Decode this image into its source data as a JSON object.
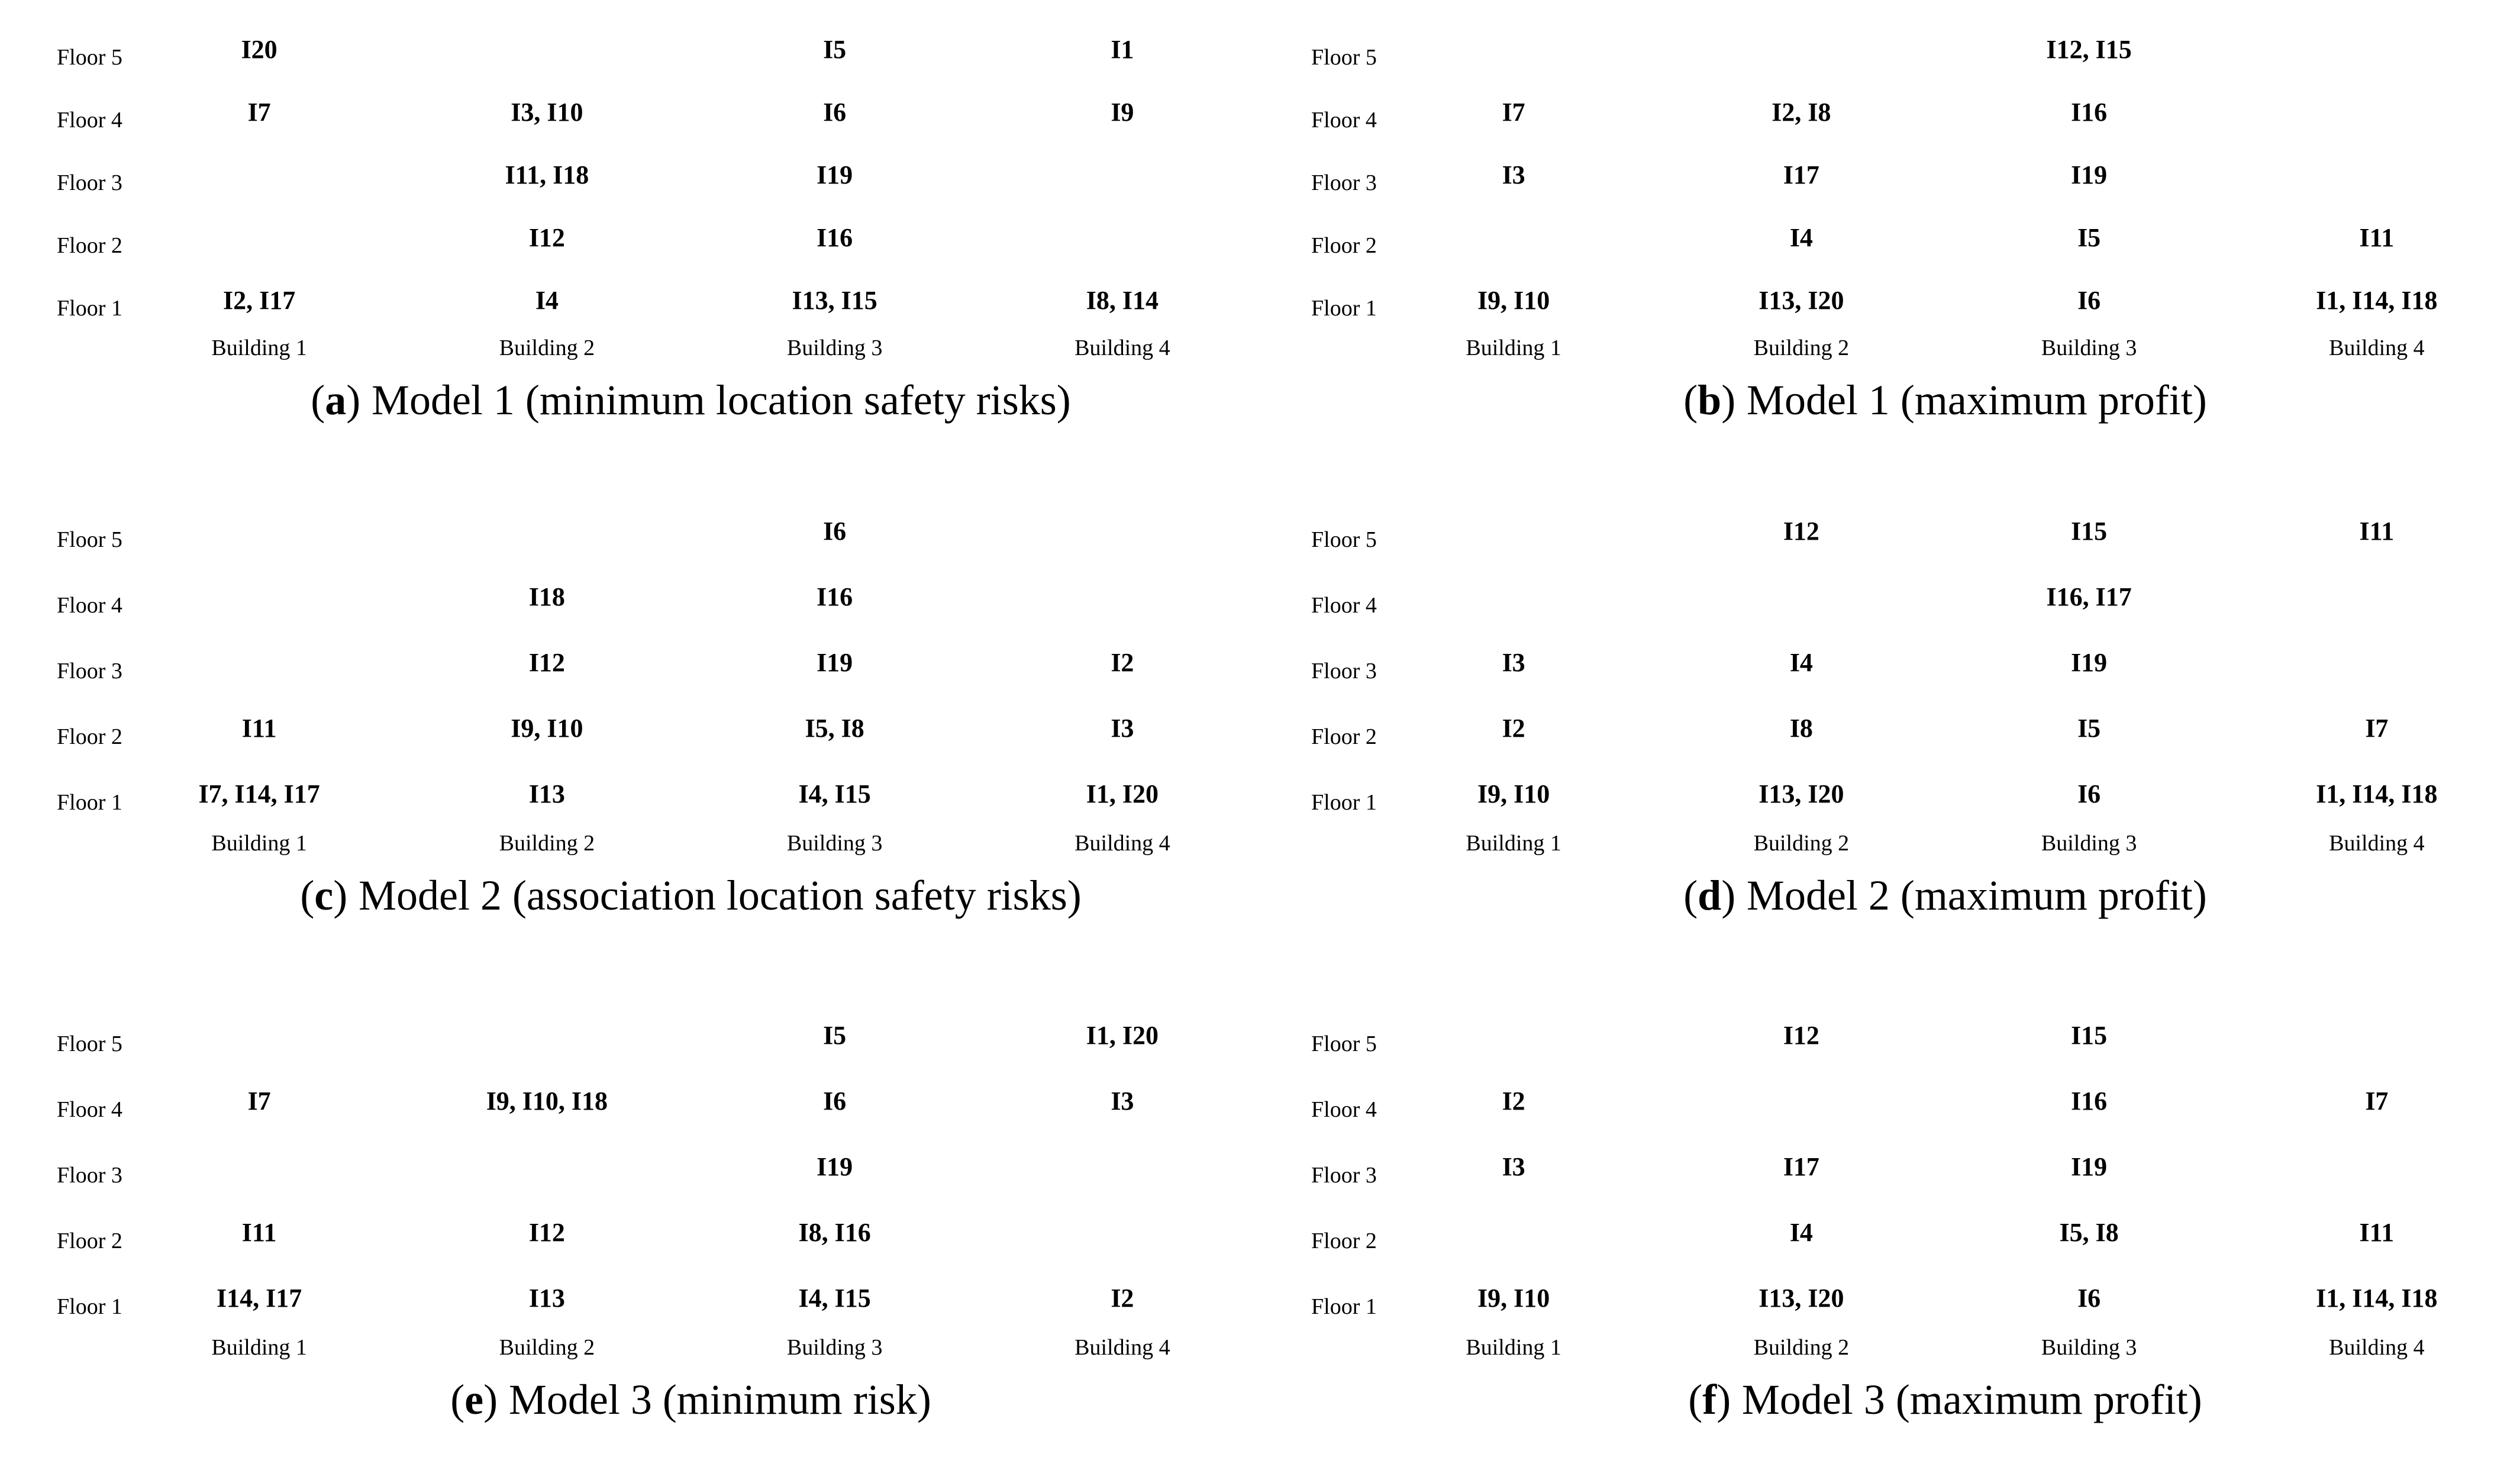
{
  "figure": {
    "paren_open": "(",
    "paren_close": ")",
    "floors": [
      "Floor 5",
      "Floor 4",
      "Floor 3",
      "Floor 2",
      "Floor 1"
    ],
    "buildings": [
      "Building 1",
      "Building 2",
      "Building 3",
      "Building 4"
    ],
    "panels": [
      {
        "letter": "a",
        "caption": "Model 1 (minimum location safety risks)",
        "cells": [
          [
            "I20",
            "",
            "I5",
            "I1"
          ],
          [
            "I7",
            "I3, I10",
            "I6",
            "I9"
          ],
          [
            "",
            "I11, I18",
            "I19",
            ""
          ],
          [
            "",
            "I12",
            "I16",
            ""
          ],
          [
            "I2, I17",
            "I4",
            "I13, I15",
            "I8, I14"
          ]
        ]
      },
      {
        "letter": "b",
        "caption": "Model 1 (maximum profit)",
        "cells": [
          [
            "",
            "",
            "I12, I15",
            ""
          ],
          [
            "I7",
            "I2, I8",
            "I16",
            ""
          ],
          [
            "I3",
            "I17",
            "I19",
            ""
          ],
          [
            "",
            "I4",
            "I5",
            "I11"
          ],
          [
            "I9, I10",
            "I13, I20",
            "I6",
            "I1, I14, I18"
          ]
        ]
      },
      {
        "letter": "c",
        "caption": "Model 2 (association location safety risks)",
        "cells": [
          [
            "",
            "",
            "I6",
            ""
          ],
          [
            "",
            "I18",
            "I16",
            ""
          ],
          [
            "",
            "I12",
            "I19",
            "I2"
          ],
          [
            "I11",
            "I9, I10",
            "I5, I8",
            "I3"
          ],
          [
            "I7, I14, I17",
            "I13",
            "I4, I15",
            "I1, I20"
          ]
        ]
      },
      {
        "letter": "d",
        "caption": "Model 2 (maximum profit)",
        "cells": [
          [
            "",
            "I12",
            "I15",
            "I11"
          ],
          [
            "",
            "",
            "I16, I17",
            ""
          ],
          [
            "I3",
            "I4",
            "I19",
            ""
          ],
          [
            "I2",
            "I8",
            "I5",
            "I7"
          ],
          [
            "I9, I10",
            "I13, I20",
            "I6",
            "I1, I14, I18"
          ]
        ]
      },
      {
        "letter": "e",
        "caption": "Model 3 (minimum risk)",
        "cells": [
          [
            "",
            "",
            "I5",
            "I1, I20"
          ],
          [
            "I7",
            "I9, I10, I18",
            "I6",
            "I3"
          ],
          [
            "",
            "",
            "I19",
            ""
          ],
          [
            "I11",
            "I12",
            "I8, I16",
            ""
          ],
          [
            "I14, I17",
            "I13",
            "I4, I15",
            "I2"
          ]
        ]
      },
      {
        "letter": "f",
        "caption": "Model 3 (maximum profit)",
        "cells": [
          [
            "",
            "I12",
            "I15",
            ""
          ],
          [
            "I2",
            "",
            "I16",
            "I7"
          ],
          [
            "I3",
            "I17",
            "I19",
            ""
          ],
          [
            "",
            "I4",
            "I5, I8",
            "I11"
          ],
          [
            "I9, I10",
            "I13, I20",
            "I6",
            "I1, I14, I18"
          ]
        ]
      }
    ]
  }
}
